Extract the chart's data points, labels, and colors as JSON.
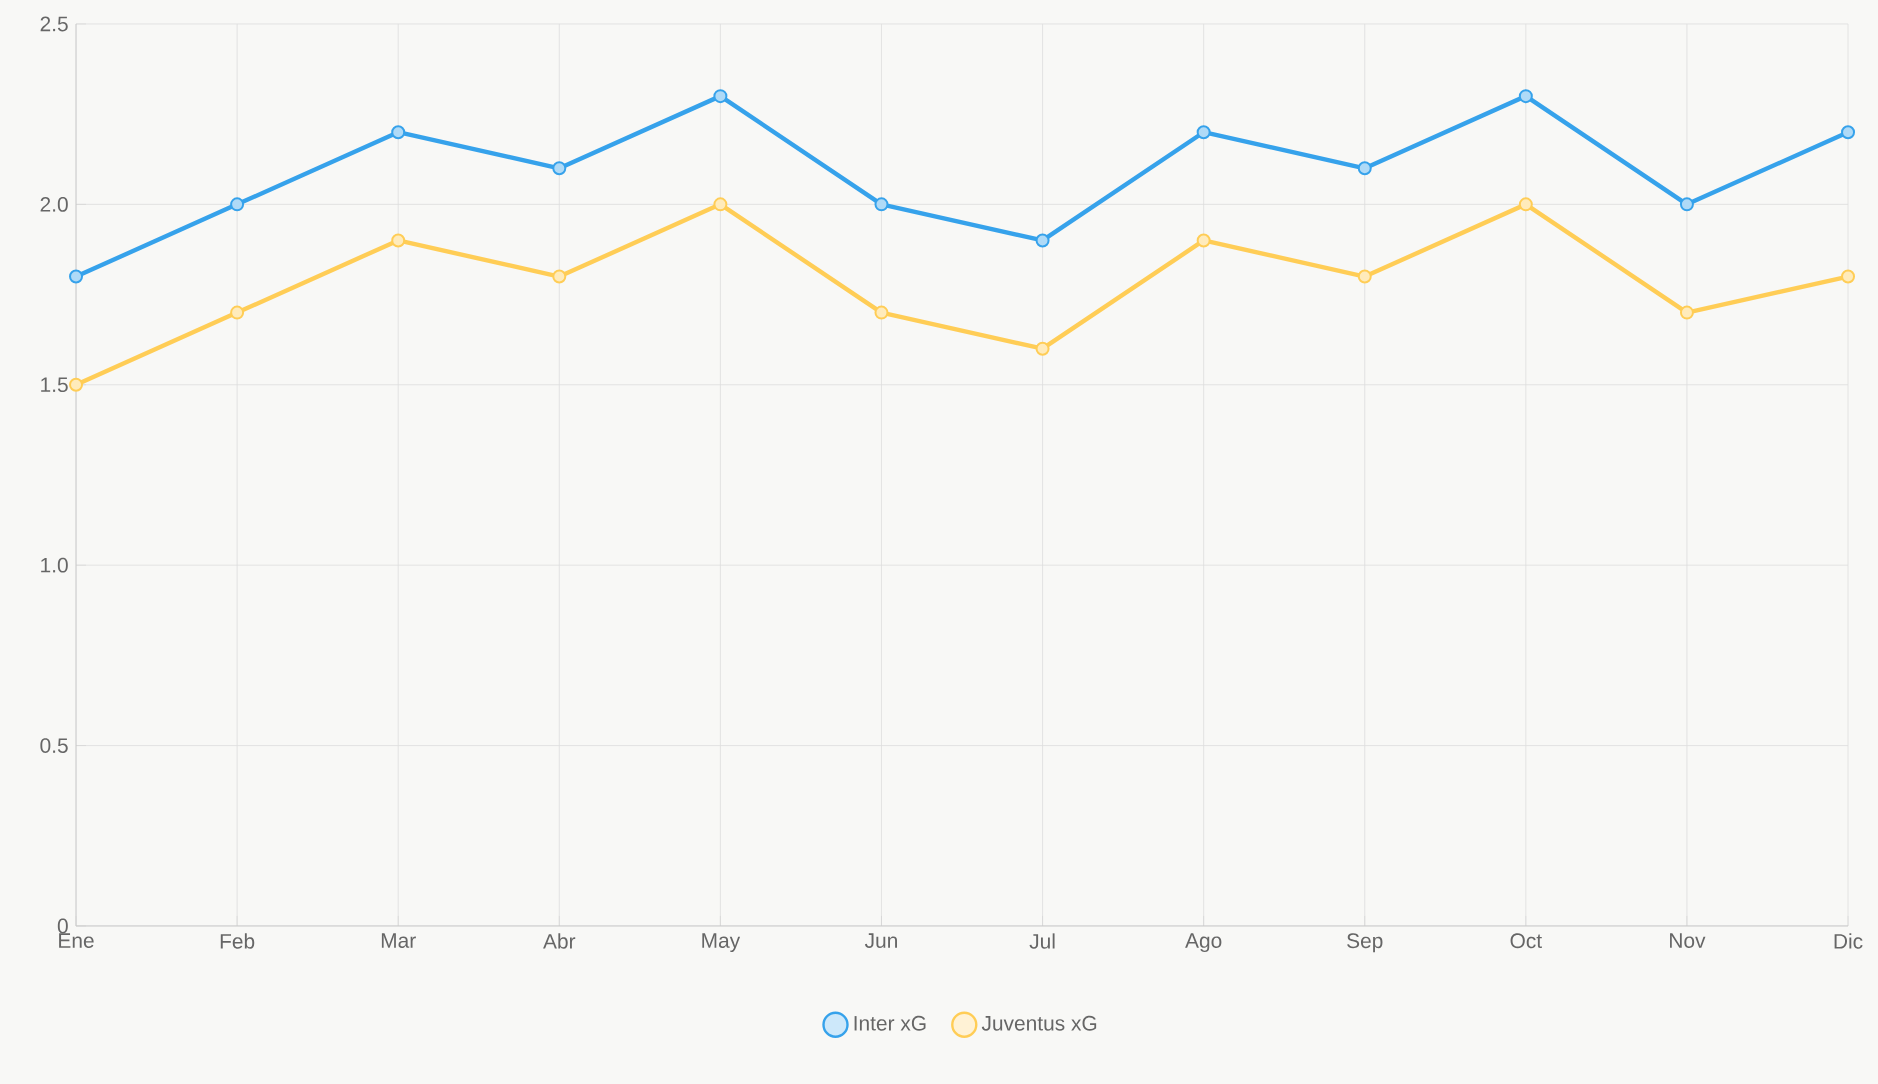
{
  "chart_data": {
    "type": "line",
    "categories": [
      "Ene",
      "Feb",
      "Mar",
      "Abr",
      "May",
      "Jun",
      "Jul",
      "Ago",
      "Sep",
      "Oct",
      "Nov",
      "Dic"
    ],
    "series": [
      {
        "name": "Inter xG",
        "color": "#36a2eb",
        "values": [
          1.8,
          2.0,
          2.2,
          2.1,
          2.3,
          2.0,
          1.9,
          2.2,
          2.1,
          2.3,
          2.0,
          2.2
        ]
      },
      {
        "name": "Juventus xG",
        "color": "#ffcd56",
        "values": [
          1.5,
          1.7,
          1.9,
          1.8,
          2.0,
          1.7,
          1.6,
          1.9,
          1.8,
          2.0,
          1.7,
          1.8
        ]
      }
    ],
    "ylim": [
      0,
      2.5
    ],
    "yticks": [
      0,
      0.5,
      {
        "value": 1,
        "label": "1.0"
      },
      1.5,
      {
        "value": 2,
        "label": "2.0"
      },
      2.5
    ],
    "grid": true,
    "legend": "bottom",
    "marker": "circle",
    "line_style": "solid"
  }
}
